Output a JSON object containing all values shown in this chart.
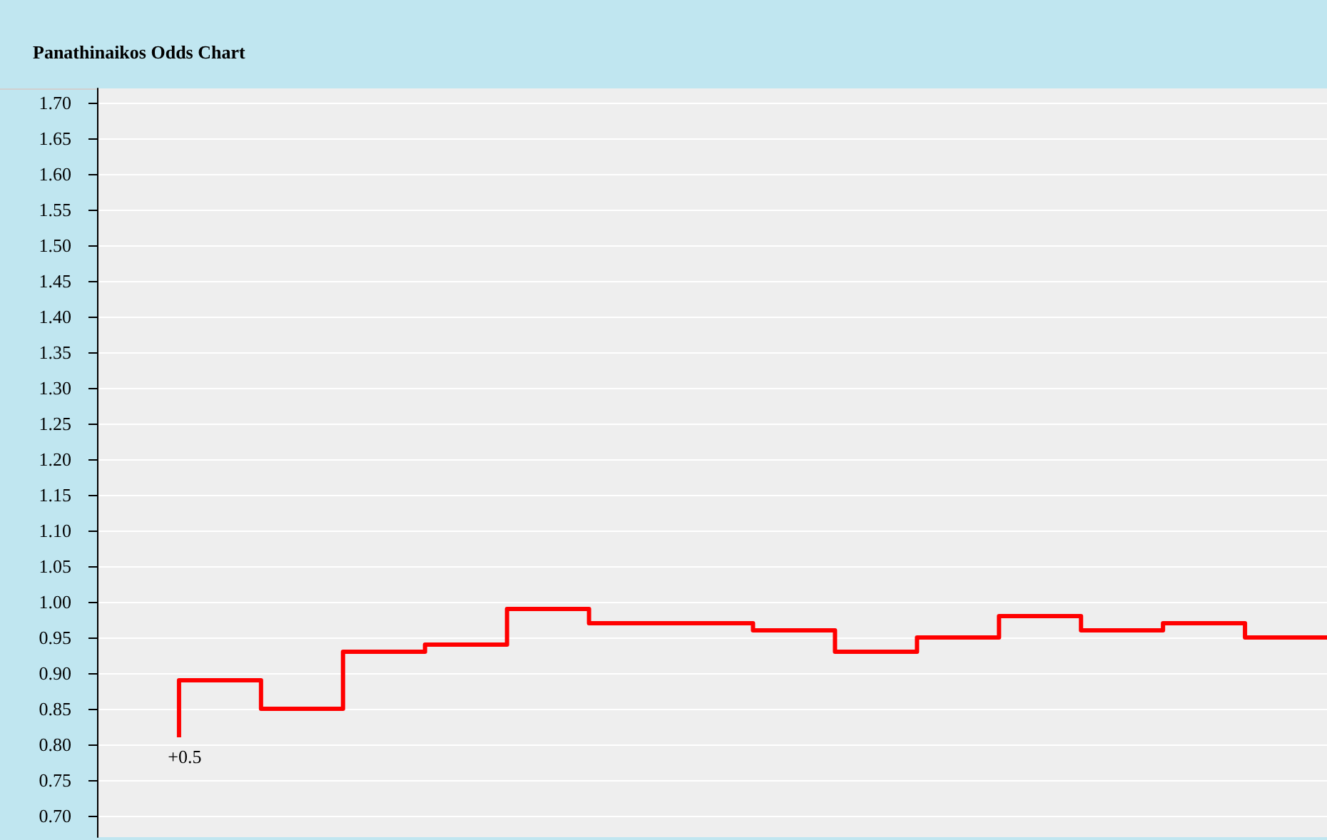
{
  "chart_data": {
    "type": "step",
    "title": "Panathinaikos Odds Chart",
    "categories": [
      null,
      null,
      null,
      null,
      null,
      null,
      null,
      null,
      null,
      null,
      null,
      null,
      null,
      null,
      null
    ],
    "series": [
      {
        "color": "#ff0000",
        "values": [
          0.81,
          0.89,
          0.85,
          0.93,
          0.94,
          0.99,
          0.97,
          0.97,
          0.96,
          0.93,
          0.95,
          0.98,
          0.96,
          0.97,
          0.95
        ]
      }
    ],
    "ylim": [
      0.67,
      1.72
    ],
    "yticks": [
      {
        "value": 0.7,
        "label": "0.70"
      },
      {
        "value": 0.75,
        "label": "0.75"
      },
      {
        "value": 0.8,
        "label": "0.80"
      },
      {
        "value": 0.85,
        "label": "0.85"
      },
      {
        "value": 0.9,
        "label": "0.90"
      },
      {
        "value": 0.95,
        "label": "0.95"
      },
      {
        "value": 1.0,
        "label": "1.00"
      },
      {
        "value": 1.05,
        "label": "1.05"
      },
      {
        "value": 1.1,
        "label": "1.10"
      },
      {
        "value": 1.15,
        "label": "1.15"
      },
      {
        "value": 1.2,
        "label": "1.20"
      },
      {
        "value": 1.25,
        "label": "1.25"
      },
      {
        "value": 1.3,
        "label": "1.30"
      },
      {
        "value": 1.35,
        "label": "1.35"
      },
      {
        "value": 1.4,
        "label": "1.40"
      },
      {
        "value": 1.45,
        "label": "1.45"
      },
      {
        "value": 1.5,
        "label": "1.50"
      },
      {
        "value": 1.55,
        "label": "1.55"
      },
      {
        "value": 1.6,
        "label": "1.60"
      },
      {
        "value": 1.65,
        "label": "1.65"
      },
      {
        "value": 1.7,
        "label": "1.70"
      }
    ],
    "annotations": [
      "+0.5"
    ],
    "grid": "y",
    "marker": "none",
    "line_style": "solid",
    "tick_labels": "y"
  }
}
